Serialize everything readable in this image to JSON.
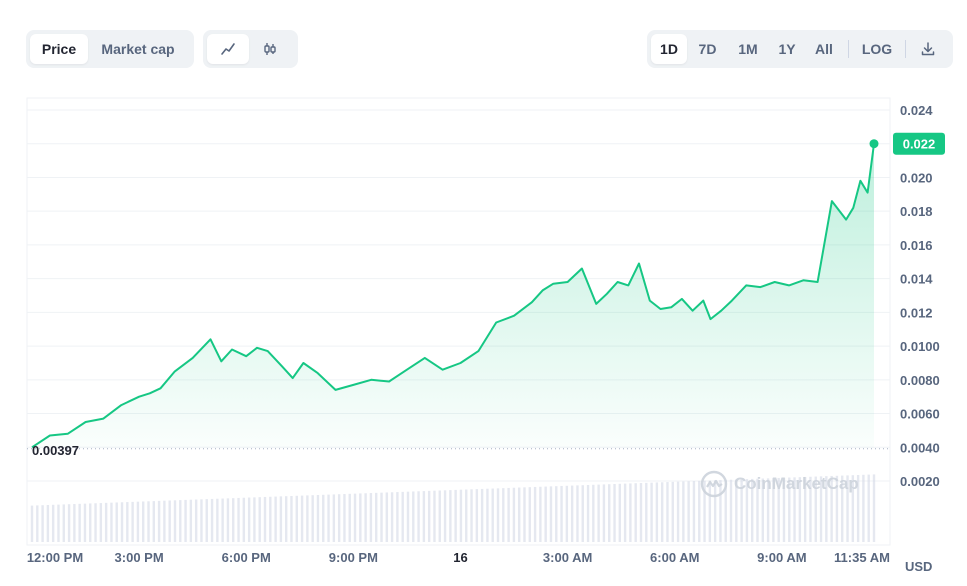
{
  "toolbar": {
    "metric_tabs": [
      {
        "label": "Price",
        "active": true
      },
      {
        "label": "Market cap",
        "active": false
      }
    ],
    "chart_type_icons": [
      "line-chart-icon",
      "candlestick-icon"
    ],
    "ranges": [
      {
        "label": "1D",
        "active": true
      },
      {
        "label": "7D",
        "active": false
      },
      {
        "label": "1M",
        "active": false
      },
      {
        "label": "1Y",
        "active": false
      },
      {
        "label": "All",
        "active": false
      }
    ],
    "log_label": "LOG",
    "download_icon": "download-icon"
  },
  "watermark": "CoinMarketCap",
  "currency_label": "USD",
  "colors": {
    "line": "#16c784",
    "grid": "#eff2f5",
    "axis_text": "#58667e",
    "volume": "#cfd6e4"
  },
  "chart_data": {
    "type": "area",
    "x_tick_labels": [
      "12:00 PM",
      "3:00 PM",
      "6:00 PM",
      "9:00 PM",
      "16",
      "3:00 AM",
      "6:00 AM",
      "9:00 AM",
      "11:35 AM"
    ],
    "x_tick_hours": [
      0,
      3,
      6,
      9,
      12,
      15,
      18,
      21,
      23.58
    ],
    "y_tick_labels": [
      "0.024",
      "0.022",
      "0.020",
      "0.018",
      "0.016",
      "0.014",
      "0.012",
      "0.0100",
      "0.0080",
      "0.0060",
      "0.0040",
      "0.0020"
    ],
    "ylim": [
      0.0,
      0.025
    ],
    "open_price_label": "0.00397",
    "open_price": 0.00397,
    "current_price_label": "0.022",
    "current_price": 0.022,
    "series": [
      {
        "x_hours": [
          0,
          0.5,
          1,
          1.5,
          2,
          2.5,
          3,
          3.3,
          3.6,
          4,
          4.5,
          5,
          5.3,
          5.6,
          6,
          6.3,
          6.6,
          7,
          7.3,
          7.6,
          8,
          8.5,
          9,
          9.5,
          10,
          10.5,
          11,
          11.5,
          12,
          12.5,
          13,
          13.5,
          14,
          14.3,
          14.6,
          15,
          15.4,
          15.8,
          16.1,
          16.4,
          16.7,
          17,
          17.3,
          17.6,
          17.9,
          18.2,
          18.5,
          18.8,
          19,
          19.3,
          19.6,
          20,
          20.4,
          20.8,
          21.2,
          21.6,
          22,
          22.4,
          22.8,
          23,
          23.2,
          23.4,
          23.58
        ],
        "values": [
          0.004,
          0.0047,
          0.0048,
          0.0055,
          0.0057,
          0.0065,
          0.007,
          0.0072,
          0.0075,
          0.0085,
          0.0093,
          0.0104,
          0.0091,
          0.0098,
          0.0094,
          0.0099,
          0.0097,
          0.0088,
          0.0081,
          0.009,
          0.0084,
          0.0074,
          0.0077,
          0.008,
          0.0079,
          0.0086,
          0.0093,
          0.0086,
          0.009,
          0.0097,
          0.0114,
          0.0118,
          0.0126,
          0.0133,
          0.0137,
          0.0138,
          0.0146,
          0.0125,
          0.0131,
          0.0138,
          0.0136,
          0.0149,
          0.0127,
          0.0122,
          0.0123,
          0.0128,
          0.0121,
          0.0127,
          0.0116,
          0.0121,
          0.0127,
          0.0136,
          0.0135,
          0.0138,
          0.0136,
          0.0139,
          0.0138,
          0.0186,
          0.0175,
          0.0182,
          0.0198,
          0.0191,
          0.022
        ]
      }
    ],
    "volume": {
      "x_range_hours": [
        0,
        23.58
      ],
      "relative_start": 0.28,
      "relative_end": 0.52
    }
  }
}
